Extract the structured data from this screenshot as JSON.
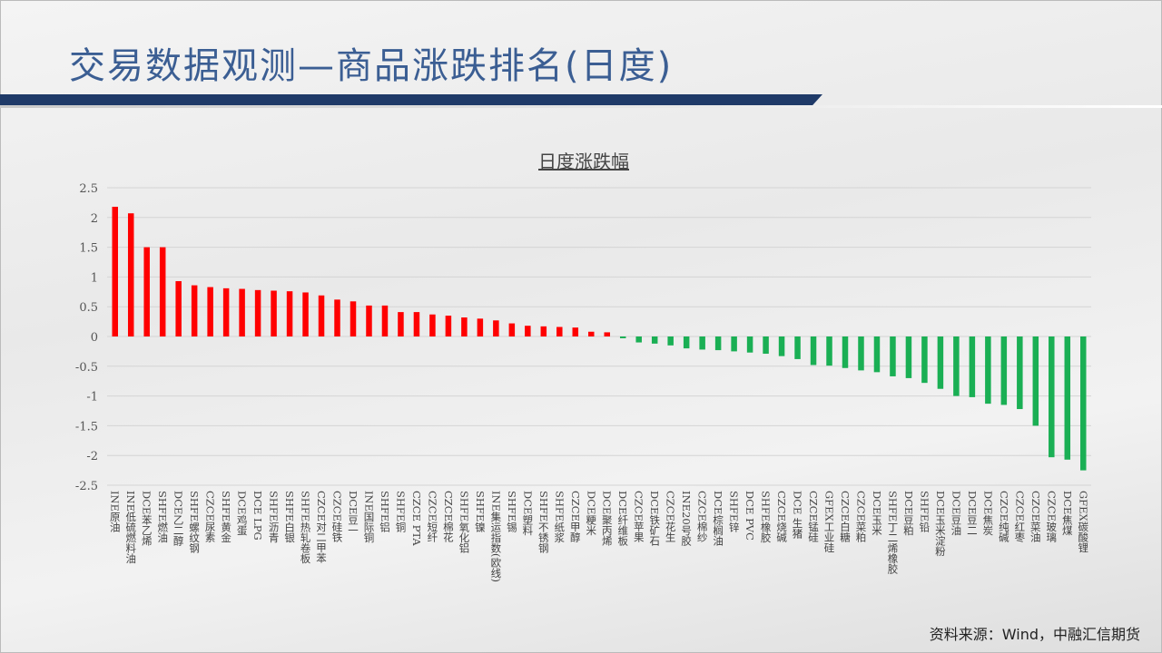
{
  "header": {
    "title": "交易数据观测—商品涨跌排名(日度)"
  },
  "footer": {
    "source": "资料来源：Wind，中融汇信期货"
  },
  "colors": {
    "up": "#ff0000",
    "down": "#1aaf54",
    "title": "#3b5e93",
    "bar": "#1f3a68"
  },
  "chart_data": {
    "type": "bar",
    "title": "日度涨跌幅",
    "xlabel": "",
    "ylabel": "",
    "ylim": [
      -2.5,
      2.5
    ],
    "yticks": [
      2.5,
      2,
      1.5,
      1,
      0.5,
      0,
      -0.5,
      -1,
      -1.5,
      -2,
      -2.5
    ],
    "grid": true,
    "categories": [
      "INE原油",
      "INE低硫燃料油",
      "DCE苯乙烯",
      "SHFE燃油",
      "DCE乙二醇",
      "SHFE螺纹钢",
      "CZCE尿素",
      "SHFE黄金",
      "DCE鸡蛋",
      "DCE LPG",
      "SHFE沥青",
      "SHFE白银",
      "SHFE热轧卷板",
      "CZCE对二甲苯",
      "CZCE硅铁",
      "DCE豆一",
      "INE国际铜",
      "SHFE铝",
      "SHFE铜",
      "CZCE PTA",
      "CZCE短纤",
      "CZCE棉花",
      "SHFE氧化铝",
      "SHFE镍",
      "INE集运指数(欧线)",
      "SHFE锡",
      "DCE塑料",
      "SHFE不锈钢",
      "SHFE纸浆",
      "CZCE甲醇",
      "DCE粳米",
      "DCE聚丙烯",
      "DCE纤维板",
      "CZCE苹果",
      "DCE铁矿石",
      "CZCE花生",
      "INE20号胶",
      "CZCE棉纱",
      "DCE棕榈油",
      "SHFE锌",
      "DCE PVC",
      "SHFE橡胶",
      "CZCE烧碱",
      "DCE 生猪",
      "CZCE锰硅",
      "GFEX工业硅",
      "CZCE白糖",
      "CZCE菜粕",
      "DCE玉米",
      "SHFE丁二烯橡胶",
      "DCE豆粕",
      "SHFE铅",
      "DCE玉米淀粉",
      "DCE豆油",
      "DCE豆二",
      "DCE焦炭",
      "CZCE纯碱",
      "CZCE红枣",
      "CZCE菜油",
      "CZCE玻璃",
      "DCE焦煤",
      "GFEX碳酸锂"
    ],
    "values": [
      2.18,
      2.07,
      1.5,
      1.5,
      0.93,
      0.86,
      0.83,
      0.81,
      0.8,
      0.78,
      0.77,
      0.76,
      0.74,
      0.69,
      0.62,
      0.59,
      0.52,
      0.52,
      0.41,
      0.41,
      0.37,
      0.35,
      0.32,
      0.3,
      0.27,
      0.22,
      0.18,
      0.17,
      0.16,
      0.15,
      0.08,
      0.07,
      -0.03,
      -0.1,
      -0.12,
      -0.15,
      -0.2,
      -0.22,
      -0.23,
      -0.25,
      -0.27,
      -0.29,
      -0.33,
      -0.38,
      -0.48,
      -0.49,
      -0.53,
      -0.57,
      -0.6,
      -0.67,
      -0.7,
      -0.78,
      -0.88,
      -1.0,
      -1.02,
      -1.13,
      -1.15,
      -1.22,
      -1.5,
      -2.03,
      -2.07,
      -2.25
    ]
  }
}
